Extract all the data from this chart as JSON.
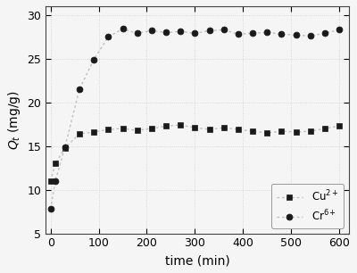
{
  "cu_x": [
    0,
    10,
    30,
    60,
    90,
    120,
    150,
    180,
    210,
    240,
    270,
    300,
    330,
    360,
    390,
    420,
    450,
    480,
    510,
    540,
    570,
    600
  ],
  "cu_y": [
    11.0,
    13.0,
    14.8,
    16.4,
    16.6,
    16.9,
    17.0,
    16.8,
    17.0,
    17.3,
    17.4,
    17.1,
    16.9,
    17.1,
    16.9,
    16.7,
    16.5,
    16.7,
    16.6,
    16.7,
    17.0,
    17.3
  ],
  "cr_x": [
    0,
    10,
    30,
    60,
    90,
    120,
    150,
    180,
    210,
    240,
    270,
    300,
    330,
    360,
    390,
    420,
    450,
    480,
    510,
    540,
    570,
    600
  ],
  "cr_y": [
    7.8,
    11.0,
    14.9,
    21.5,
    24.9,
    27.5,
    28.4,
    27.9,
    28.2,
    28.0,
    28.1,
    27.9,
    28.2,
    28.3,
    27.8,
    27.9,
    28.0,
    27.8,
    27.7,
    27.6,
    27.9,
    28.3
  ],
  "line_color": "#c0c0c0",
  "marker_color": "#1a1a1a",
  "xlabel": "time (min)",
  "ylabel": "$Q_t$ (mg/g)",
  "xlim": [
    -10,
    620
  ],
  "ylim": [
    5,
    31
  ],
  "xticks": [
    0,
    100,
    200,
    300,
    400,
    500,
    600
  ],
  "yticks": [
    5,
    10,
    15,
    20,
    25,
    30
  ],
  "legend_cu": "Cu$^{2+}$",
  "legend_cr": "Cr$^{6+}$",
  "grid_color": "#d0d0d0",
  "background_color": "#f5f5f5",
  "figsize": [
    4.0,
    3.06
  ],
  "dpi": 100
}
